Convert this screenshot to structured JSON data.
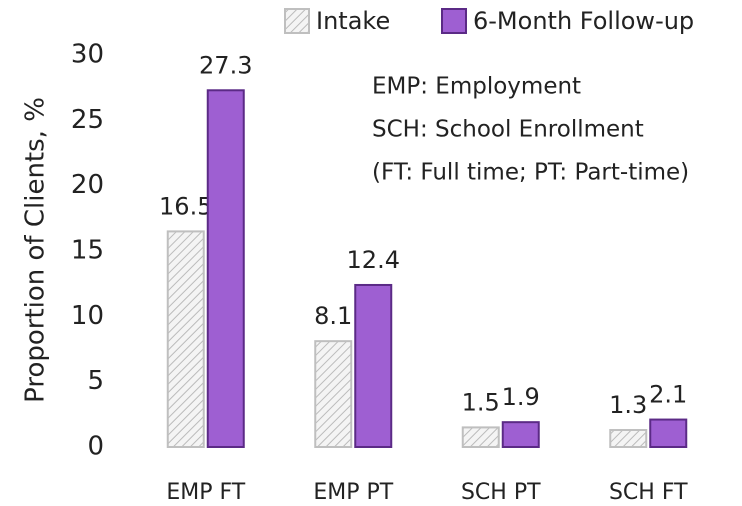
{
  "chart_data": {
    "type": "bar",
    "y_label": "Proportion of Clients, %",
    "categories": [
      "EMP FT",
      "EMP PT",
      "SCH PT",
      "SCH FT"
    ],
    "series": [
      {
        "name": "Intake",
        "color": "#bfbfbf",
        "pattern": "hatch",
        "values": [
          16.5,
          8.1,
          1.5,
          1.3
        ]
      },
      {
        "name": "6-Month Follow-up",
        "color": "#9e5fd2",
        "values": [
          27.3,
          12.4,
          1.9,
          2.1
        ]
      }
    ],
    "ylim": [
      0,
      30
    ],
    "yticks": [
      0,
      5,
      10,
      15,
      20,
      25,
      30
    ],
    "grid": false,
    "legend": "top",
    "annotations": [
      "EMP: Employment",
      "SCH: School Enrollment",
      "(FT: Full time; PT: Part-time)"
    ]
  }
}
